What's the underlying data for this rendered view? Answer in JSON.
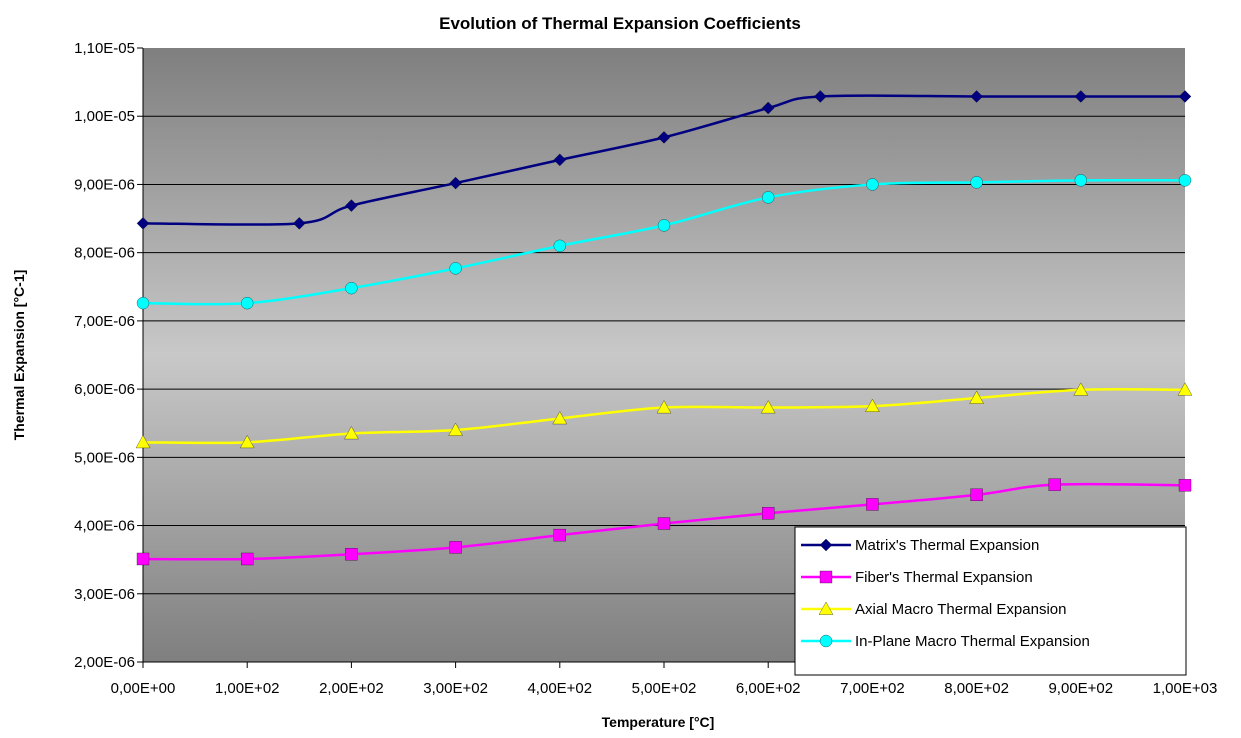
{
  "chart_data": {
    "type": "line",
    "title": "Evolution of Thermal Expansion Coefficients",
    "xlabel": "Temperature [°C]",
    "ylabel": "Thermal Expansion [°C-1]",
    "xlim": [
      0,
      1000
    ],
    "ylim": [
      2e-06,
      1.1e-05
    ],
    "x_ticks": [
      0,
      100,
      200,
      300,
      400,
      500,
      600,
      700,
      800,
      900,
      1000
    ],
    "x_tick_labels": [
      "0,00E+00",
      "1,00E+02",
      "2,00E+02",
      "3,00E+02",
      "4,00E+02",
      "5,00E+02",
      "6,00E+02",
      "7,00E+02",
      "8,00E+02",
      "9,00E+02",
      "1,00E+03"
    ],
    "y_ticks": [
      2e-06,
      3e-06,
      4e-06,
      5e-06,
      6e-06,
      7e-06,
      8e-06,
      9e-06,
      1e-05,
      1.1e-05
    ],
    "y_tick_labels": [
      "2,00E-06",
      "3,00E-06",
      "4,00E-06",
      "5,00E-06",
      "6,00E-06",
      "7,00E-06",
      "8,00E-06",
      "9,00E-06",
      "1,00E-05",
      "1,10E-05"
    ],
    "grid": "horizontal",
    "legend_position": "bottom-right",
    "series": [
      {
        "name": "Matrix's Thermal Expansion",
        "color": "#000080",
        "marker": "diamond",
        "x": [
          0,
          150,
          200,
          300,
          400,
          500,
          600,
          650,
          800,
          900,
          1000
        ],
        "y": [
          8.43e-06,
          8.43e-06,
          8.69e-06,
          9.02e-06,
          9.36e-06,
          9.69e-06,
          1.012e-05,
          1.029e-05,
          1.029e-05,
          1.029e-05,
          1.029e-05
        ]
      },
      {
        "name": "Fiber's Thermal Expansion",
        "color": "#ff00ff",
        "marker": "square",
        "x": [
          0,
          100,
          200,
          300,
          400,
          500,
          600,
          700,
          800,
          875,
          1000
        ],
        "y": [
          3.51e-06,
          3.51e-06,
          3.58e-06,
          3.68e-06,
          3.86e-06,
          4.03e-06,
          4.18e-06,
          4.31e-06,
          4.45e-06,
          4.6e-06,
          4.59e-06
        ]
      },
      {
        "name": "Axial Macro Thermal Expansion",
        "color": "#ffff00",
        "marker": "triangle",
        "x": [
          0,
          100,
          200,
          300,
          400,
          500,
          600,
          700,
          800,
          900,
          1000
        ],
        "y": [
          5.22e-06,
          5.22e-06,
          5.35e-06,
          5.4e-06,
          5.57e-06,
          5.73e-06,
          5.73e-06,
          5.75e-06,
          5.87e-06,
          5.99e-06,
          5.99e-06
        ]
      },
      {
        "name": "In-Plane Macro Thermal Expansion",
        "color": "#00ffff",
        "marker": "circle",
        "x": [
          0,
          100,
          200,
          300,
          400,
          500,
          600,
          700,
          800,
          900,
          1000
        ],
        "y": [
          7.26e-06,
          7.26e-06,
          7.48e-06,
          7.77e-06,
          8.1e-06,
          8.4e-06,
          8.81e-06,
          9e-06,
          9.03e-06,
          9.06e-06,
          9.06e-06
        ]
      }
    ]
  }
}
